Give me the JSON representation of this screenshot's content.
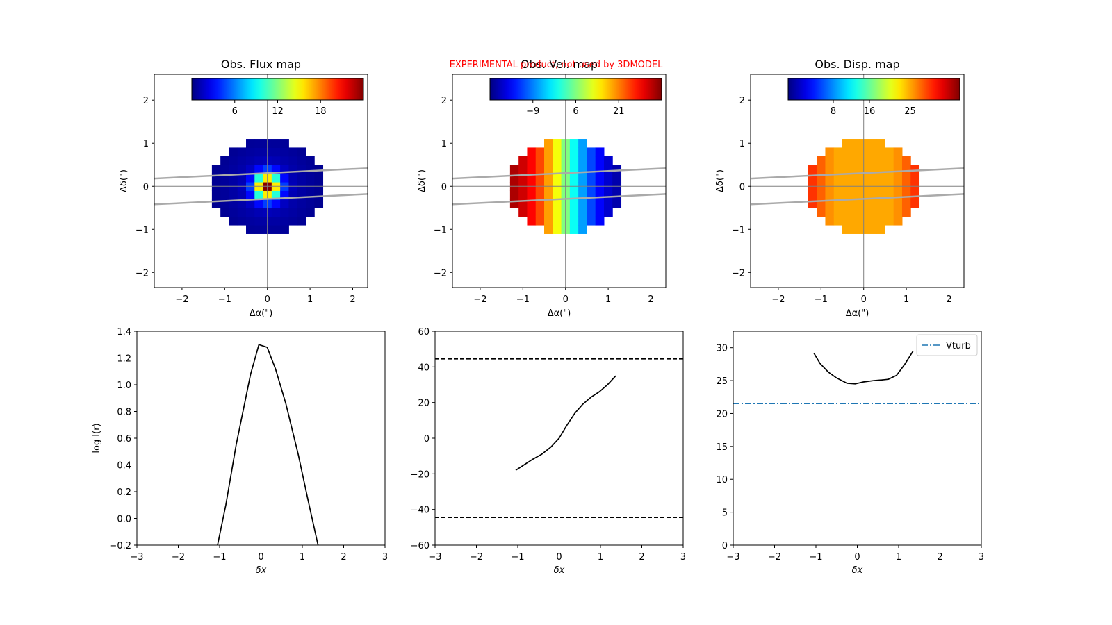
{
  "watermark": "EXPERIMENTAL product, not used by 3DMODEL",
  "colors": {
    "axis": "#000000",
    "grid_line": "#808080",
    "slit": "#aaaaaa",
    "vturb": "#1f77b4",
    "watermark": "#ff0000",
    "colormap": "jet"
  },
  "chart_data": [
    {
      "type": "heatmap",
      "title": "Obs. Flux map",
      "xlabel": "Δα(\")",
      "ylabel": "Δδ(\")",
      "xlim": [
        -2.65,
        2.35
      ],
      "ylim": [
        -2.35,
        2.6
      ],
      "xticks": [
        -2,
        -1,
        0,
        1,
        2
      ],
      "yticks": [
        -2,
        -1,
        0,
        1,
        2
      ],
      "pixel_size": 0.2,
      "colorbar": {
        "min": 0,
        "max": 24,
        "ticks": [
          6,
          12,
          18
        ],
        "cmap": "jet"
      },
      "crosshair": true,
      "slit_lines": [
        {
          "x": [
            -2.65,
            2.35
          ],
          "y": [
            0.18,
            0.42
          ]
        },
        {
          "x": [
            -2.65,
            2.35
          ],
          "y": [
            -0.42,
            -0.18
          ]
        }
      ],
      "field": "flux"
    },
    {
      "type": "heatmap",
      "title": "Obs. Vel. map",
      "xlabel": "Δα(\")",
      "ylabel": "Δδ(\")",
      "xlim": [
        -2.65,
        2.35
      ],
      "ylim": [
        -2.35,
        2.6
      ],
      "xticks": [
        -2,
        -1,
        0,
        1,
        2
      ],
      "yticks": [
        -2,
        -1,
        0,
        1,
        2
      ],
      "pixel_size": 0.2,
      "colorbar": {
        "min": -24,
        "max": 36,
        "ticks": [
          -9,
          6,
          21
        ],
        "cmap": "jet"
      },
      "crosshair": true,
      "slit_lines": [
        {
          "x": [
            -2.65,
            2.35
          ],
          "y": [
            0.18,
            0.42
          ]
        },
        {
          "x": [
            -2.65,
            2.35
          ],
          "y": [
            -0.42,
            -0.18
          ]
        }
      ],
      "field": "velocity"
    },
    {
      "type": "heatmap",
      "title": "Obs. Disp. map",
      "xlabel": "Δα(\")",
      "ylabel": "Δδ(\")",
      "xlim": [
        -2.65,
        2.35
      ],
      "ylim": [
        -2.35,
        2.6
      ],
      "xticks": [
        -2,
        -1,
        0,
        1,
        2
      ],
      "yticks": [
        -2,
        -1,
        0,
        1,
        2
      ],
      "pixel_size": 0.2,
      "colorbar": {
        "min": -2,
        "max": 36,
        "ticks": [
          8,
          16,
          25
        ],
        "cmap": "jet"
      },
      "crosshair": true,
      "slit_lines": [
        {
          "x": [
            -2.65,
            2.35
          ],
          "y": [
            0.18,
            0.42
          ]
        },
        {
          "x": [
            -2.65,
            2.35
          ],
          "y": [
            -0.42,
            -0.18
          ]
        }
      ],
      "field": "dispersion"
    },
    {
      "type": "line",
      "title": "",
      "xlabel": "δx",
      "ylabel": "log I(r)",
      "xlim": [
        -3,
        3
      ],
      "ylim": [
        -0.2,
        1.4
      ],
      "xticks": [
        -3,
        -2,
        -1,
        0,
        1,
        2,
        3
      ],
      "yticks": [
        -0.2,
        0.0,
        0.2,
        0.4,
        0.6,
        0.8,
        1.0,
        1.2,
        1.4
      ],
      "ytick_labels": [
        "−0.2",
        "0.0",
        "0.2",
        "0.4",
        "0.6",
        "0.8",
        "1.0",
        "1.2",
        "1.4"
      ],
      "series": [
        {
          "x": [
            -1.05,
            -0.85,
            -0.6,
            -0.25,
            -0.05,
            0.15,
            0.35,
            0.6,
            0.9,
            1.15,
            1.38
          ],
          "y": [
            -0.2,
            0.1,
            0.55,
            1.08,
            1.3,
            1.28,
            1.12,
            0.86,
            0.48,
            0.12,
            -0.2
          ],
          "style": "solid",
          "color": "#000000"
        }
      ],
      "hlines": []
    },
    {
      "type": "line",
      "title": "",
      "xlabel": "δx",
      "ylabel": "",
      "xlim": [
        -3,
        3
      ],
      "ylim": [
        -60,
        60
      ],
      "xticks": [
        -3,
        -2,
        -1,
        0,
        1,
        2,
        3
      ],
      "yticks": [
        -60,
        -40,
        -20,
        0,
        20,
        40,
        60
      ],
      "ytick_labels": [
        "−60",
        "−40",
        "−20",
        "0",
        "20",
        "40",
        "60"
      ],
      "series": [
        {
          "x": [
            -1.05,
            -0.85,
            -0.65,
            -0.42,
            -0.2,
            0.0,
            0.18,
            0.38,
            0.57,
            0.77,
            0.97,
            1.17,
            1.37
          ],
          "y": [
            -18,
            -15,
            -12,
            -9,
            -5,
            0,
            7,
            14,
            19,
            23,
            26,
            30,
            35
          ],
          "style": "solid",
          "color": "#000000"
        }
      ],
      "hlines": [
        {
          "y": 44.5,
          "style": "dashed",
          "color": "#000000"
        },
        {
          "y": -44.5,
          "style": "dashed",
          "color": "#000000"
        }
      ]
    },
    {
      "type": "line",
      "title": "",
      "xlabel": "δx",
      "ylabel": "",
      "xlim": [
        -3,
        3
      ],
      "ylim": [
        0,
        32.5
      ],
      "xticks": [
        -3,
        -2,
        -1,
        0,
        1,
        2,
        3
      ],
      "yticks": [
        0,
        5,
        10,
        15,
        20,
        25,
        30
      ],
      "ytick_labels": [
        "0",
        "5",
        "10",
        "15",
        "20",
        "25",
        "30"
      ],
      "series": [
        {
          "x": [
            -1.05,
            -0.9,
            -0.7,
            -0.5,
            -0.25,
            -0.05,
            0.15,
            0.4,
            0.6,
            0.75,
            0.95,
            1.15,
            1.35
          ],
          "y": [
            29.2,
            27.6,
            26.3,
            25.4,
            24.6,
            24.5,
            24.8,
            25.0,
            25.1,
            25.2,
            25.8,
            27.5,
            29.5
          ],
          "style": "solid",
          "color": "#000000"
        }
      ],
      "hlines": [
        {
          "y": 21.5,
          "style": "dashdot",
          "color": "#1f77b4",
          "label": "Vturb"
        }
      ],
      "legend": {
        "position": "top-right",
        "entries": [
          "Vturb"
        ]
      }
    }
  ]
}
